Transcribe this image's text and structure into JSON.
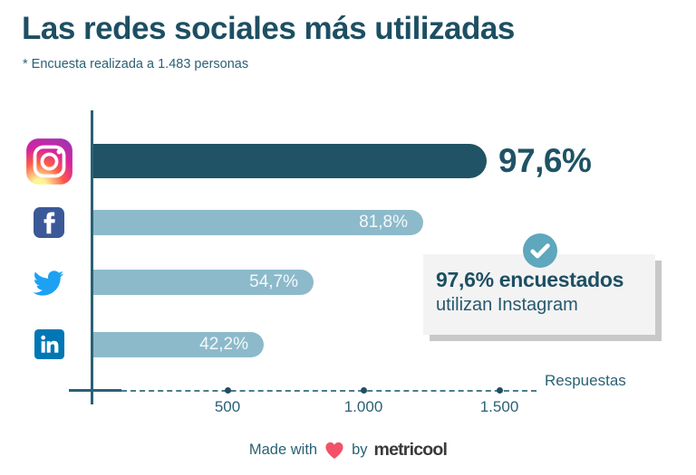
{
  "header": {
    "title": "Las redes sociales más utilizadas",
    "subtitle": "* Encuesta realizada a 1.483 personas"
  },
  "chart_data": {
    "type": "bar",
    "orientation": "horizontal",
    "title": "Las redes sociales más utilizadas",
    "categories": [
      "Instagram",
      "Facebook",
      "Twitter",
      "LinkedIn"
    ],
    "values_pct": [
      97.6,
      81.8,
      54.7,
      42.2
    ],
    "value_labels": [
      "97,6%",
      "81,8%",
      "54,7%",
      "42,2%"
    ],
    "total_responses": 1483,
    "xlabel": "Respuestas",
    "x_ticks": [
      500,
      1000,
      1500
    ],
    "x_tick_labels": [
      "500",
      "1.000",
      "1.500"
    ],
    "xlim": [
      0,
      1666
    ],
    "grid": false,
    "legend": "none",
    "highlight_index": 0,
    "bar_colors": {
      "highlight": "#1f5365",
      "default": "#8cbacb"
    },
    "category_icons": [
      "instagram-icon",
      "facebook-icon",
      "twitter-icon",
      "linkedin-icon"
    ]
  },
  "callout": {
    "badge_icon": "check-circle-icon",
    "heading": "97,6% encuestados",
    "body": "utilizan Instagram"
  },
  "footer": {
    "made_with": "Made with",
    "heart_icon": "heart-icon",
    "by": "by",
    "brand": "metricool"
  },
  "colors": {
    "title_text": "#1d4f63",
    "axis": "#2a6175",
    "bar_highlight": "#1f5365",
    "bar_default": "#8cbacb",
    "bar_inner_label": "#f4f8fa",
    "badge_circle": "#5ea7bc",
    "callout_bg": "#f3f3f3",
    "callout_shadow": "#c8c8c8",
    "heart": "#f25268",
    "brand_text": "#3a3a3a",
    "facebook_blue": "#3b5998",
    "twitter_blue": "#1da1f2",
    "linkedin_blue": "#0077b5"
  }
}
